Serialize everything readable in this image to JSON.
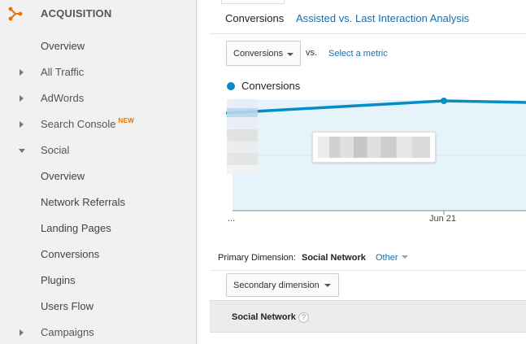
{
  "sidebar": {
    "section_title": "ACQUISITION",
    "items": [
      {
        "label": "Overview"
      },
      {
        "label": "All Traffic"
      },
      {
        "label": "AdWords"
      },
      {
        "label": "Search Console",
        "badge": "NEW"
      },
      {
        "label": "Social"
      },
      {
        "label": "Overview"
      },
      {
        "label": "Network Referrals"
      },
      {
        "label": "Landing Pages"
      },
      {
        "label": "Conversions"
      },
      {
        "label": "Plugins"
      },
      {
        "label": "Users Flow"
      },
      {
        "label": "Campaigns"
      }
    ],
    "accent_color": "#e8710a"
  },
  "tabs": [
    {
      "label": "Conversions"
    },
    {
      "label": "Assisted vs. Last Interaction Analysis"
    }
  ],
  "metric_selector": {
    "selected": "Conversions",
    "vs_label": "vs.",
    "select_metric_link": "Select a metric"
  },
  "chart": {
    "legend_label": "Conversions",
    "series_color": "#058dc7",
    "fill_color": "#e6f3fa",
    "tick_labels": [
      "...",
      "Jun 21"
    ]
  },
  "primary_dimension": {
    "label": "Primary Dimension:",
    "value": "Social Network",
    "other_label": "Other"
  },
  "secondary_dimension": {
    "label": "Secondary dimension"
  },
  "table": {
    "header_label": "Social Network",
    "help_symbol": "?"
  }
}
